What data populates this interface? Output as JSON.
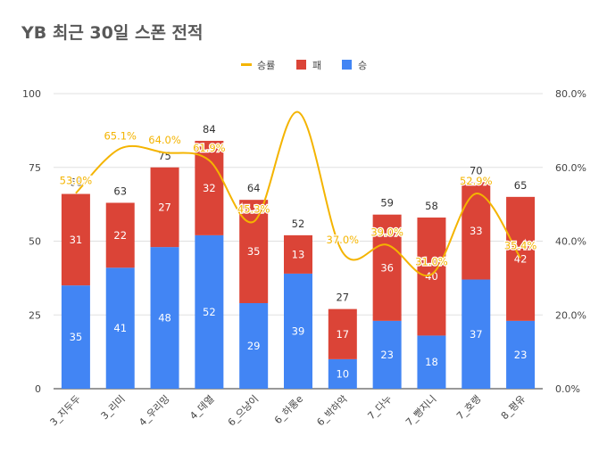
{
  "chart_data": {
    "type": "bar",
    "title": "YB 최근 30일 스폰 전적",
    "categories": [
      "3_지두두",
      "3_리미",
      "4_우리밍",
      "4_데열",
      "6_으냥이",
      "6_하롱e",
      "6_박하악",
      "7_다누",
      "7_빵지니",
      "7_호랭",
      "8_평유"
    ],
    "series": [
      {
        "name": "승",
        "values": [
          35,
          41,
          48,
          52,
          29,
          39,
          10,
          23,
          18,
          37,
          23
        ],
        "color": "#4285f4"
      },
      {
        "name": "패",
        "values": [
          31,
          22,
          27,
          32,
          35,
          13,
          17,
          36,
          40,
          33,
          42
        ],
        "color": "#db4437"
      }
    ],
    "totals": [
      66,
      63,
      75,
      84,
      64,
      52,
      27,
      59,
      58,
      70,
      65
    ],
    "line_series": {
      "name": "승률",
      "values": [
        53.0,
        65.1,
        64.0,
        61.9,
        45.3,
        75.0,
        37.0,
        39.0,
        31.0,
        52.9,
        35.4
      ],
      "value_labels": [
        "53.0%",
        "65.1%",
        "64.0%",
        "61.9%",
        "45.3%",
        "",
        "37.0%",
        "39.0%",
        "31.0%",
        "52.9%",
        "35.4%"
      ],
      "color": "#f4b400"
    },
    "legend_order": [
      "승률",
      "패",
      "승"
    ],
    "legend_position": "top",
    "y_left": {
      "ticks": [
        "0",
        "25",
        "50",
        "75",
        "100"
      ],
      "min": 0,
      "max": 100
    },
    "y_right": {
      "ticks": [
        "0.0%",
        "20.0%",
        "40.0%",
        "60.0%",
        "80.0%"
      ],
      "min": 0,
      "max": 80
    },
    "grid": true
  }
}
